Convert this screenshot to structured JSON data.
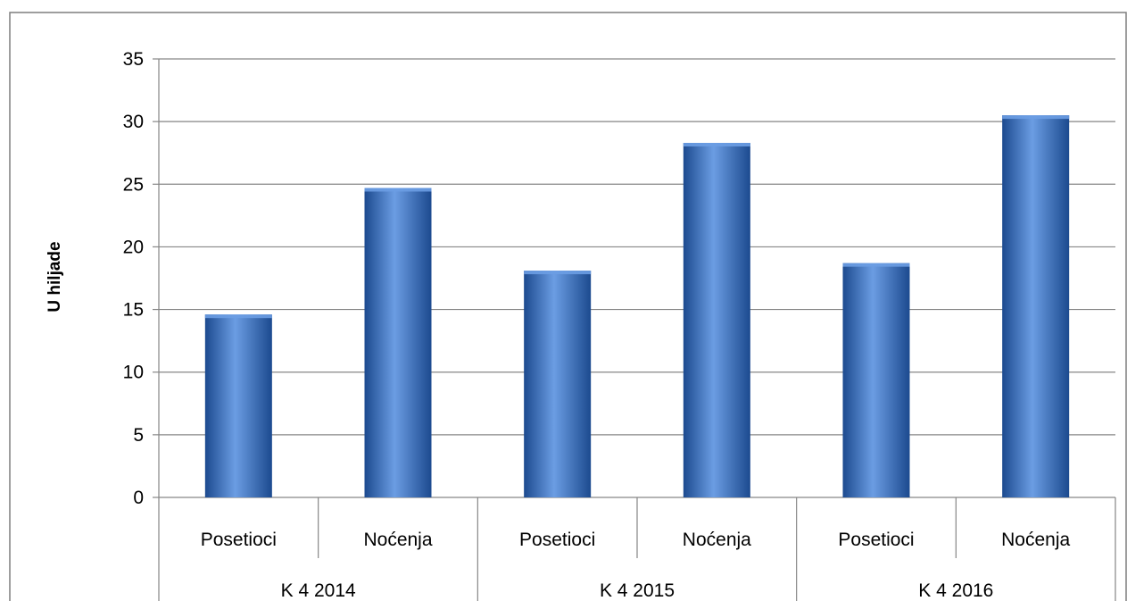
{
  "chart_data": {
    "type": "bar",
    "title": "",
    "xlabel": "",
    "ylabel": "U hiljade",
    "ylim": [
      0,
      35
    ],
    "yticks": [
      0,
      5,
      10,
      15,
      20,
      25,
      30,
      35
    ],
    "grid": true,
    "legend": "none",
    "groups": [
      "K 4 2014",
      "K 4 2015",
      "K 4 2016"
    ],
    "categories": [
      "Posetioci",
      "Noćenja",
      "Posetioci",
      "Noćenja",
      "Posetioci",
      "Noćenja"
    ],
    "values": [
      14.6,
      24.7,
      18.1,
      28.3,
      18.7,
      30.5
    ],
    "bar_color": "#3a73c8",
    "bar_color_dark": "#1c4a8f",
    "bar_color_light": "#6b9de3"
  }
}
